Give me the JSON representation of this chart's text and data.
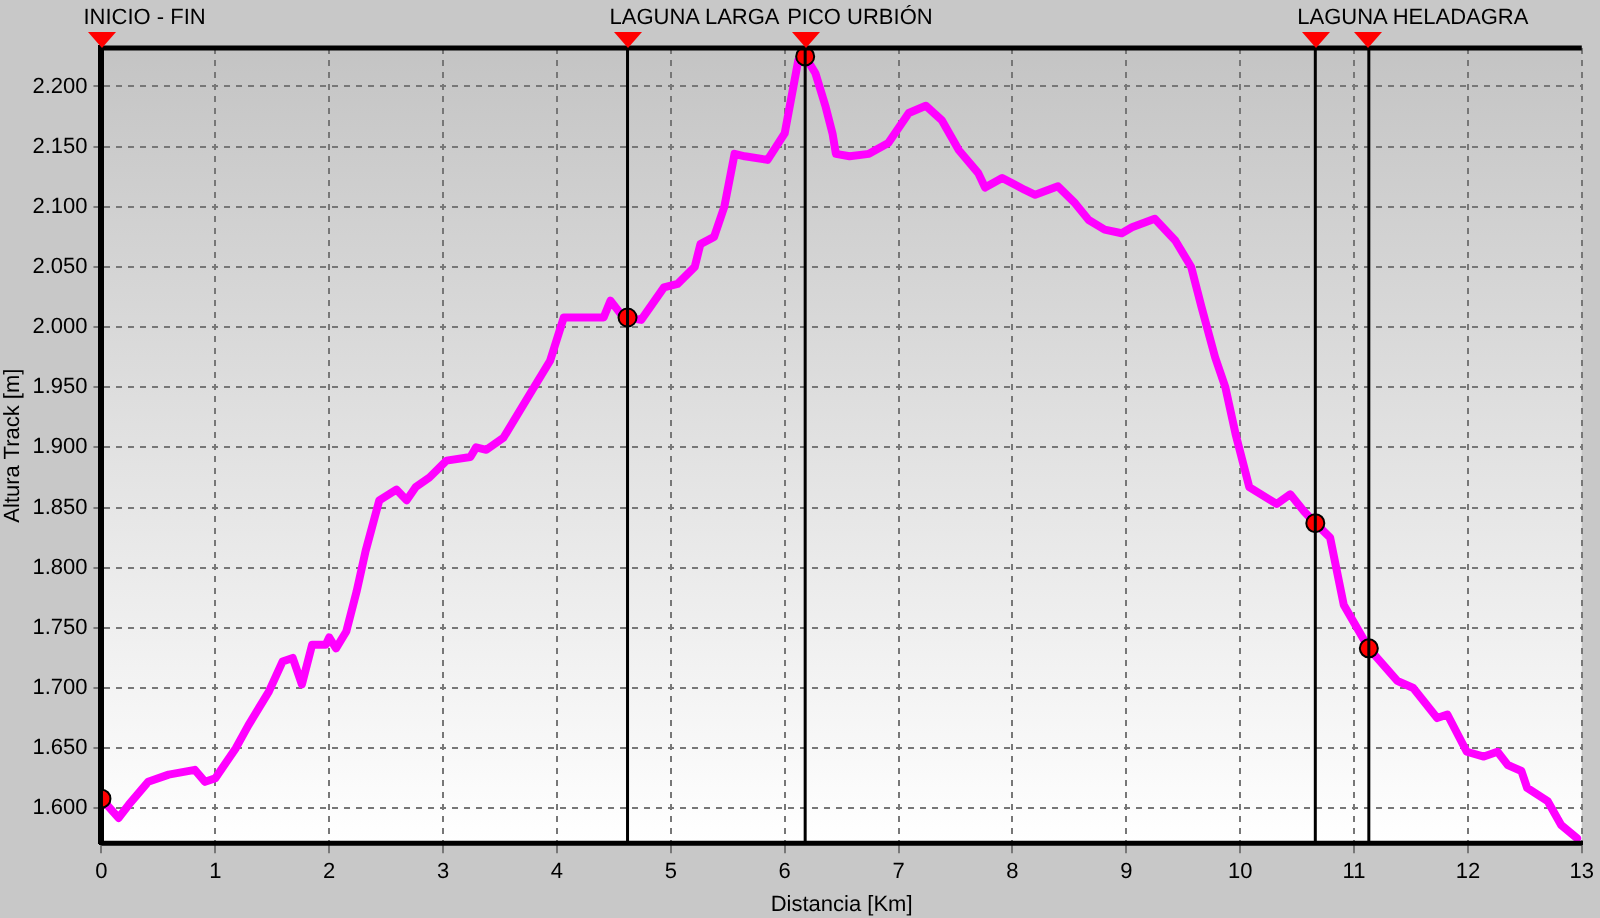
{
  "chart_data": {
    "type": "line",
    "xlabel": "Distancia [Km]",
    "ylabel": "Altura Track [m]",
    "xlim": [
      0,
      13
    ],
    "xticks": [
      0,
      1,
      2,
      3,
      4,
      5,
      6,
      7,
      8,
      9,
      10,
      11,
      12,
      13
    ],
    "ylim": [
      1571,
      2232
    ],
    "yticks": [
      {
        "value": 1600,
        "label": "1.600"
      },
      {
        "value": 1650,
        "label": "1.650"
      },
      {
        "value": 1700,
        "label": "1.700"
      },
      {
        "value": 1750,
        "label": "1.750"
      },
      {
        "value": 1800,
        "label": "1.800"
      },
      {
        "value": 1850,
        "label": "1.850"
      },
      {
        "value": 1900,
        "label": "1.900"
      },
      {
        "value": 1950,
        "label": "1.950"
      },
      {
        "value": 2000,
        "label": "2.000"
      },
      {
        "value": 2050,
        "label": "2.050"
      },
      {
        "value": 2100,
        "label": "2.100"
      },
      {
        "value": 2150,
        "label": "2.150"
      },
      {
        "value": 2200,
        "label": "2.200"
      }
    ],
    "grid": true,
    "legend": false,
    "series": [
      {
        "type": "line",
        "color": "#ff00ff",
        "marker": "none",
        "line_style": "solid",
        "x": [
          0,
          0.15,
          0.24,
          0.41,
          0.59,
          0.82,
          0.91,
          1.0,
          1.18,
          1.29,
          1.47,
          1.59,
          1.68,
          1.76,
          1.85,
          1.97,
          2.0,
          2.06,
          2.15,
          2.24,
          2.32,
          2.44,
          2.59,
          2.68,
          2.76,
          2.88,
          3.03,
          3.24,
          3.29,
          3.38,
          3.53,
          3.76,
          3.94,
          4.06,
          4.24,
          4.41,
          4.47,
          4.56,
          4.62,
          4.74,
          4.94,
          5.06,
          5.21,
          5.26,
          5.38,
          5.47,
          5.56,
          5.65,
          5.85,
          6.0,
          6.12,
          6.18,
          6.27,
          6.36,
          6.42,
          6.45,
          6.57,
          6.74,
          6.91,
          7.09,
          7.24,
          7.38,
          7.53,
          7.7,
          7.76,
          7.91,
          8.11,
          8.2,
          8.4,
          8.55,
          8.67,
          8.81,
          8.96,
          9.05,
          9.25,
          9.43,
          9.57,
          9.66,
          9.78,
          9.87,
          9.96,
          10.08,
          10.32,
          10.44,
          10.56,
          10.66,
          10.79,
          10.91,
          11.13,
          11.38,
          11.52,
          11.73,
          11.82,
          11.99,
          12.14,
          12.26,
          12.35,
          12.47,
          12.52,
          12.7,
          12.82,
          12.96
        ],
        "values": [
          1608,
          1592,
          1603,
          1622,
          1628,
          1632,
          1622,
          1625,
          1650,
          1669,
          1697,
          1722,
          1725,
          1703,
          1736,
          1736,
          1742,
          1733,
          1747,
          1780,
          1814,
          1856,
          1865,
          1856,
          1867,
          1875,
          1889,
          1892,
          1900,
          1898,
          1908,
          1944,
          1972,
          2008,
          2008,
          2008,
          2022,
          2011,
          2008,
          2006,
          2033,
          2036,
          2050,
          2069,
          2075,
          2100,
          2144,
          2142,
          2139,
          2161,
          2222,
          2225,
          2211,
          2183,
          2161,
          2144,
          2142,
          2144,
          2153,
          2178,
          2184,
          2172,
          2147,
          2128,
          2116,
          2124,
          2114,
          2110,
          2117,
          2103,
          2089,
          2081,
          2078,
          2083,
          2090,
          2072,
          2050,
          2017,
          1975,
          1950,
          1911,
          1867,
          1853,
          1861,
          1847,
          1837,
          1825,
          1769,
          1733,
          1706,
          1700,
          1675,
          1678,
          1647,
          1643,
          1647,
          1636,
          1631,
          1617,
          1606,
          1586,
          1575
        ]
      },
      {
        "type": "scatter",
        "color": "#ff0000",
        "marker": "circle",
        "x": [
          0,
          4.62,
          6.18,
          10.66,
          11.13
        ],
        "values": [
          1608,
          2008,
          2225,
          1837,
          1733
        ]
      }
    ],
    "ref_lines": [
      {
        "axis": "x",
        "value": 0,
        "label": "INICIO - FIN",
        "color": "#000000"
      },
      {
        "axis": "x",
        "value": 4.62,
        "label": "LAGUNA LARGA",
        "color": "#000000"
      },
      {
        "axis": "x",
        "value": 6.18,
        "label": "PICO URBIÓN",
        "color": "#000000"
      },
      {
        "axis": "x",
        "value": 10.66,
        "label": "LAGUNA HELADAGRA",
        "color": "#000000"
      },
      {
        "axis": "x",
        "value": 11.13,
        "label": null,
        "color": "#000000"
      }
    ]
  }
}
